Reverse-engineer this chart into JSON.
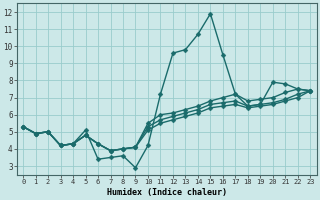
{
  "xlabel": "Humidex (Indice chaleur)",
  "bg_color": "#cce8e8",
  "grid_color": "#99cccc",
  "line_color": "#1a6b6b",
  "xlim": [
    -0.5,
    23.5
  ],
  "ylim": [
    2.5,
    12.5
  ],
  "xticks": [
    0,
    1,
    2,
    3,
    4,
    5,
    6,
    7,
    8,
    9,
    10,
    11,
    12,
    13,
    14,
    15,
    16,
    17,
    18,
    19,
    20,
    21,
    22,
    23
  ],
  "yticks": [
    3,
    4,
    5,
    6,
    7,
    8,
    9,
    10,
    11,
    12
  ],
  "series_x": [
    [
      0,
      1,
      2,
      3,
      4,
      5,
      6,
      7,
      8,
      9,
      10,
      11,
      12,
      13,
      14,
      15,
      16,
      17,
      18,
      19,
      20,
      21,
      22,
      23
    ],
    [
      0,
      1,
      2,
      3,
      4,
      5,
      6,
      7,
      8,
      9,
      10,
      11,
      12,
      13,
      14,
      15,
      16,
      17,
      18,
      19,
      20,
      21,
      22,
      23
    ],
    [
      0,
      1,
      2,
      3,
      4,
      5,
      6,
      7,
      8,
      9,
      10,
      11,
      12,
      13,
      14,
      15,
      16,
      17,
      18,
      19,
      20,
      21,
      22,
      23
    ],
    [
      0,
      1,
      2,
      3,
      4,
      5,
      6,
      7,
      8,
      9,
      10,
      11,
      12,
      13,
      14,
      15,
      16,
      17,
      18,
      19,
      20,
      21,
      22,
      23
    ]
  ],
  "series_y": [
    [
      5.3,
      4.9,
      5.0,
      4.2,
      4.3,
      5.1,
      3.4,
      3.5,
      3.6,
      2.9,
      4.2,
      7.2,
      9.6,
      9.8,
      10.7,
      11.9,
      9.5,
      7.2,
      6.5,
      6.6,
      7.9,
      7.8,
      7.5,
      7.4
    ],
    [
      5.3,
      4.9,
      5.0,
      4.2,
      4.3,
      4.8,
      4.3,
      3.9,
      4.0,
      4.1,
      5.5,
      6.0,
      6.1,
      6.3,
      6.5,
      6.8,
      7.0,
      7.2,
      6.8,
      6.9,
      7.0,
      7.3,
      7.5,
      7.4
    ],
    [
      5.3,
      4.9,
      5.0,
      4.2,
      4.3,
      4.8,
      4.3,
      3.9,
      4.0,
      4.1,
      5.3,
      5.7,
      5.9,
      6.1,
      6.3,
      6.6,
      6.7,
      6.8,
      6.5,
      6.6,
      6.7,
      6.9,
      7.2,
      7.4
    ],
    [
      5.3,
      4.9,
      5.0,
      4.2,
      4.3,
      4.8,
      4.3,
      3.9,
      4.0,
      4.1,
      5.1,
      5.5,
      5.7,
      5.9,
      6.1,
      6.4,
      6.5,
      6.6,
      6.4,
      6.5,
      6.6,
      6.8,
      7.0,
      7.4
    ]
  ],
  "markersize": 2.5,
  "linewidth": 1.0
}
